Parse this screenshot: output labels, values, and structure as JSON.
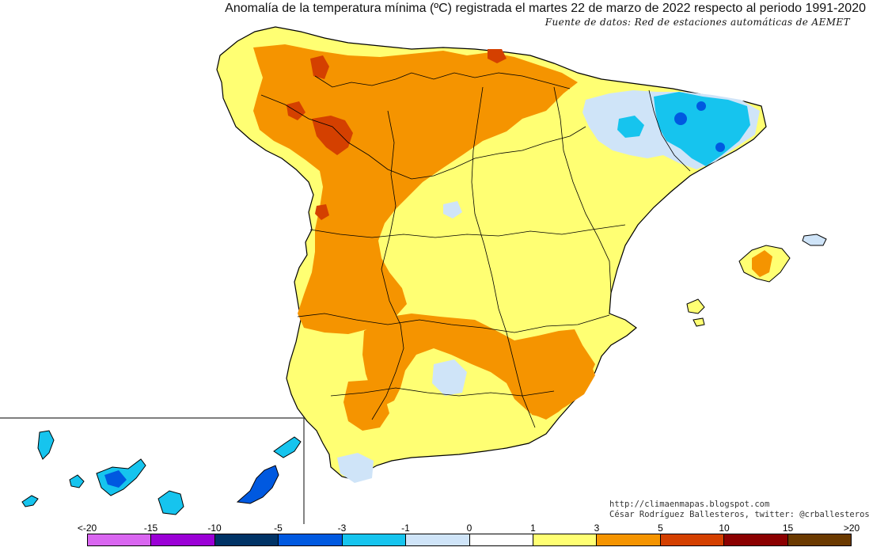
{
  "header": {
    "title": "Anomalía de la temperatura mínima (ºC) registrada el martes 22 de marzo de 2022 respecto al periodo 1991-2020",
    "source": "Fuente de datos: Red de estaciones automáticas de AEMET"
  },
  "credits": {
    "url": "http://climaenmapas.blogspot.com",
    "author": "César Rodríguez Ballesteros, twitter: @crballesteros"
  },
  "legend": {
    "labels": [
      "<-20",
      "-15",
      "-10",
      "-5",
      "-3",
      "-1",
      "0",
      "1",
      "3",
      "5",
      "10",
      "15",
      ">20"
    ],
    "colors": [
      "#d966f0",
      "#9b00d6",
      "#003366",
      "#0059e0",
      "#16c4ee",
      "#cfe4f8",
      "#ffffff",
      "#ffff73",
      "#f59400",
      "#d44000",
      "#8b0000",
      "#6b3a00"
    ]
  },
  "palette": {
    "warm_light": "#ffff73",
    "warm_mid": "#f59400",
    "warm_strong": "#d44000",
    "cool_light": "#cfe4f8",
    "cool_mid": "#16c4ee",
    "cool_strong": "#0059e0"
  }
}
